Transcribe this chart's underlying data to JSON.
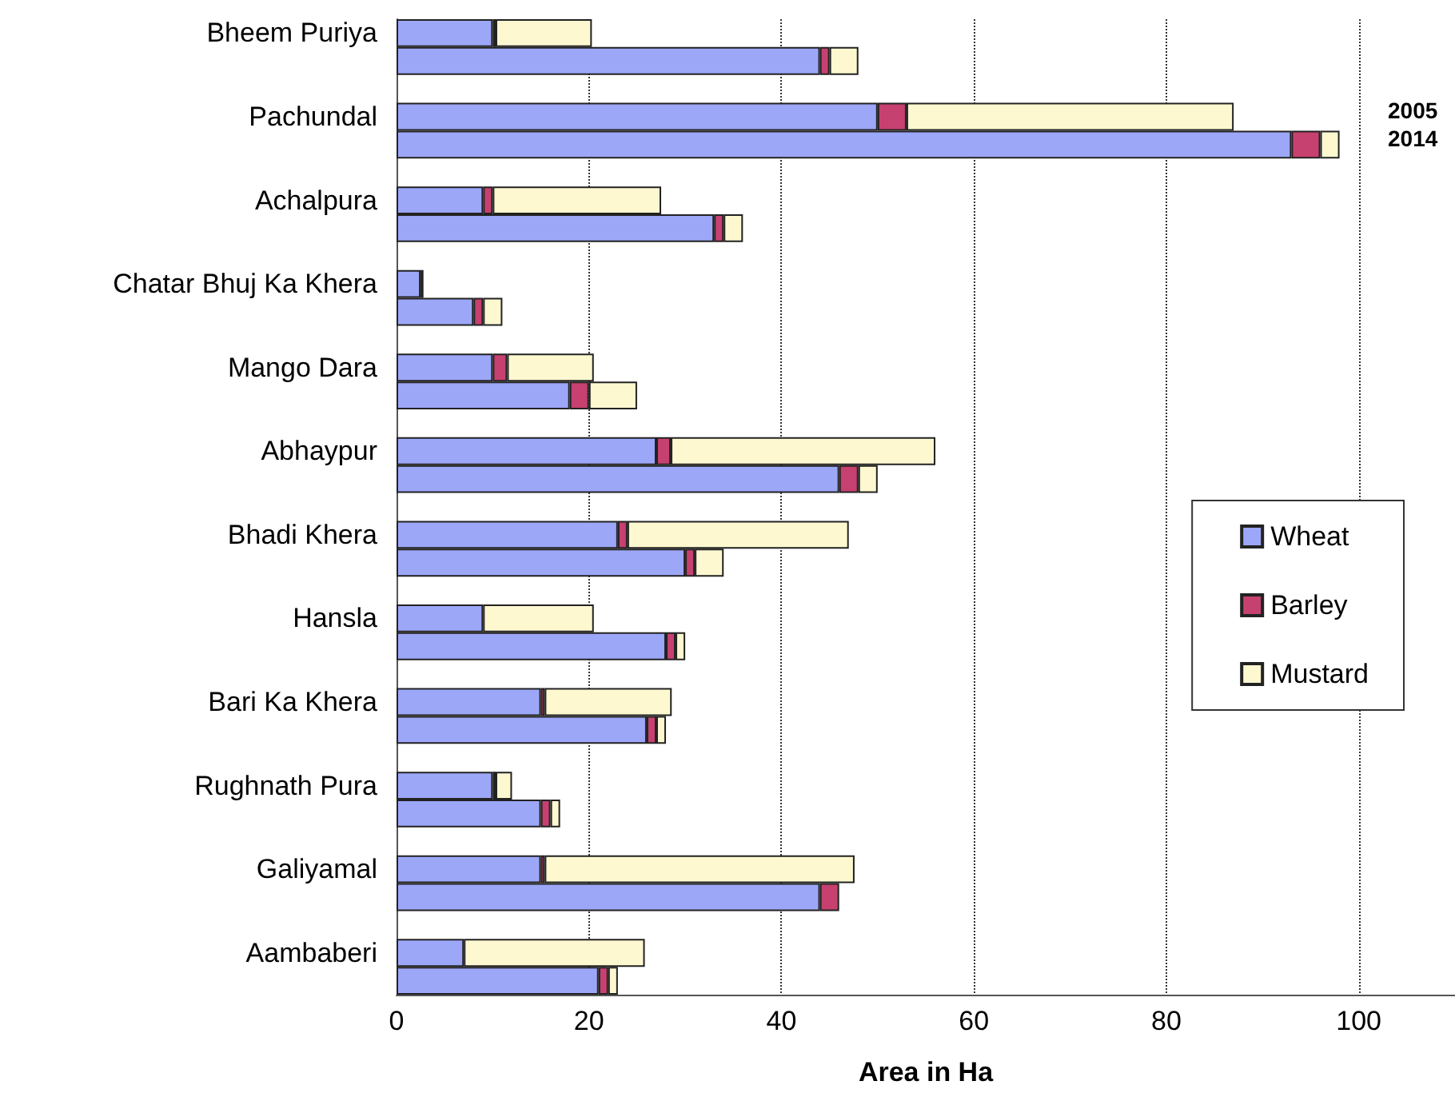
{
  "chart_data": {
    "type": "bar",
    "orientation": "horizontal",
    "stacked": true,
    "xlabel": "Area in Ha",
    "categories": [
      "Bheem Puriya",
      null,
      null,
      "Pachundal",
      null,
      null,
      "Achalpura",
      null,
      null,
      "Chatar Bhuj Ka Khera",
      null,
      null,
      "Mango Dara",
      null,
      null,
      "Abhaypur",
      null,
      null,
      "Bhadi Khera",
      null,
      null,
      "Hansla",
      null,
      null,
      "Bari Ka Khera",
      null,
      null,
      "Rughnath Pura",
      null,
      null,
      "Galiyamal",
      null,
      null,
      "Aambaberi",
      null
    ],
    "series": [
      {
        "name": "Wheat",
        "color": "#9da7f8",
        "values": [
          10,
          44,
          null,
          50,
          93,
          null,
          9,
          33,
          null,
          2.5,
          8,
          null,
          10,
          18,
          null,
          27,
          46,
          null,
          23,
          30,
          null,
          9,
          28,
          null,
          15,
          26,
          null,
          10,
          15,
          null,
          15,
          44,
          null,
          7,
          21
        ]
      },
      {
        "name": "Barley",
        "color": "#c6416f",
        "values": [
          0.3,
          1,
          null,
          3,
          3,
          null,
          1,
          1,
          null,
          0.3,
          1,
          null,
          1.5,
          2,
          null,
          1.5,
          2,
          null,
          1,
          1,
          null,
          null,
          1,
          null,
          0.4,
          1,
          null,
          0.3,
          1,
          null,
          0.4,
          2,
          null,
          null,
          1
        ]
      },
      {
        "name": "Mustard",
        "color": "#fdf8d0",
        "values": [
          10,
          3,
          null,
          34,
          2,
          null,
          17.5,
          2,
          null,
          null,
          2,
          null,
          9,
          5,
          null,
          27.5,
          2,
          null,
          23,
          3,
          null,
          11.5,
          1,
          null,
          13.2,
          1,
          null,
          1.7,
          1,
          null,
          32.2,
          null,
          null,
          18.8,
          1
        ]
      }
    ],
    "annotations": [
      "2005",
      "2014"
    ],
    "xlim": [
      0,
      110
    ],
    "xticks": [
      0,
      20,
      40,
      60,
      80,
      100
    ],
    "grid": "x",
    "line_style": "dotted",
    "legend": "right"
  }
}
